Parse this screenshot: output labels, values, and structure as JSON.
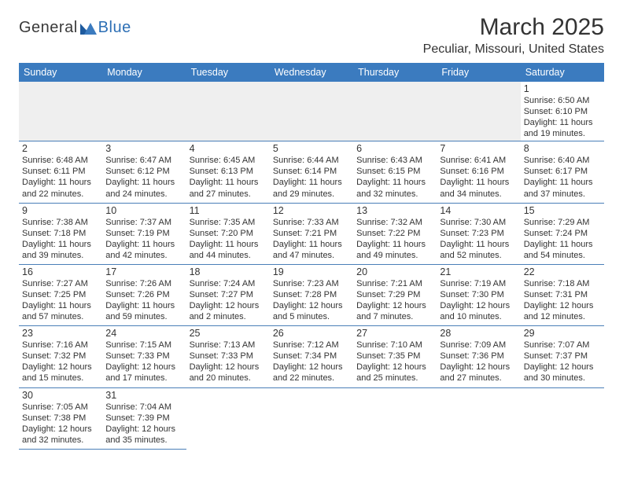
{
  "logo": {
    "text1": "General",
    "text2": "Blue"
  },
  "title": "March 2025",
  "location": "Peculiar, Missouri, United States",
  "colors": {
    "header_bg": "#3b7bbf",
    "header_fg": "#ffffff",
    "cell_border": "#4a7fb8",
    "filler_bg": "#efefef",
    "text": "#333333",
    "logo_blue": "#2d6fb5"
  },
  "weekdays": [
    "Sunday",
    "Monday",
    "Tuesday",
    "Wednesday",
    "Thursday",
    "Friday",
    "Saturday"
  ],
  "weeks": [
    [
      null,
      null,
      null,
      null,
      null,
      null,
      {
        "n": "1",
        "sunrise": "Sunrise: 6:50 AM",
        "sunset": "Sunset: 6:10 PM",
        "d1": "Daylight: 11 hours",
        "d2": "and 19 minutes."
      }
    ],
    [
      {
        "n": "2",
        "sunrise": "Sunrise: 6:48 AM",
        "sunset": "Sunset: 6:11 PM",
        "d1": "Daylight: 11 hours",
        "d2": "and 22 minutes."
      },
      {
        "n": "3",
        "sunrise": "Sunrise: 6:47 AM",
        "sunset": "Sunset: 6:12 PM",
        "d1": "Daylight: 11 hours",
        "d2": "and 24 minutes."
      },
      {
        "n": "4",
        "sunrise": "Sunrise: 6:45 AM",
        "sunset": "Sunset: 6:13 PM",
        "d1": "Daylight: 11 hours",
        "d2": "and 27 minutes."
      },
      {
        "n": "5",
        "sunrise": "Sunrise: 6:44 AM",
        "sunset": "Sunset: 6:14 PM",
        "d1": "Daylight: 11 hours",
        "d2": "and 29 minutes."
      },
      {
        "n": "6",
        "sunrise": "Sunrise: 6:43 AM",
        "sunset": "Sunset: 6:15 PM",
        "d1": "Daylight: 11 hours",
        "d2": "and 32 minutes."
      },
      {
        "n": "7",
        "sunrise": "Sunrise: 6:41 AM",
        "sunset": "Sunset: 6:16 PM",
        "d1": "Daylight: 11 hours",
        "d2": "and 34 minutes."
      },
      {
        "n": "8",
        "sunrise": "Sunrise: 6:40 AM",
        "sunset": "Sunset: 6:17 PM",
        "d1": "Daylight: 11 hours",
        "d2": "and 37 minutes."
      }
    ],
    [
      {
        "n": "9",
        "sunrise": "Sunrise: 7:38 AM",
        "sunset": "Sunset: 7:18 PM",
        "d1": "Daylight: 11 hours",
        "d2": "and 39 minutes."
      },
      {
        "n": "10",
        "sunrise": "Sunrise: 7:37 AM",
        "sunset": "Sunset: 7:19 PM",
        "d1": "Daylight: 11 hours",
        "d2": "and 42 minutes."
      },
      {
        "n": "11",
        "sunrise": "Sunrise: 7:35 AM",
        "sunset": "Sunset: 7:20 PM",
        "d1": "Daylight: 11 hours",
        "d2": "and 44 minutes."
      },
      {
        "n": "12",
        "sunrise": "Sunrise: 7:33 AM",
        "sunset": "Sunset: 7:21 PM",
        "d1": "Daylight: 11 hours",
        "d2": "and 47 minutes."
      },
      {
        "n": "13",
        "sunrise": "Sunrise: 7:32 AM",
        "sunset": "Sunset: 7:22 PM",
        "d1": "Daylight: 11 hours",
        "d2": "and 49 minutes."
      },
      {
        "n": "14",
        "sunrise": "Sunrise: 7:30 AM",
        "sunset": "Sunset: 7:23 PM",
        "d1": "Daylight: 11 hours",
        "d2": "and 52 minutes."
      },
      {
        "n": "15",
        "sunrise": "Sunrise: 7:29 AM",
        "sunset": "Sunset: 7:24 PM",
        "d1": "Daylight: 11 hours",
        "d2": "and 54 minutes."
      }
    ],
    [
      {
        "n": "16",
        "sunrise": "Sunrise: 7:27 AM",
        "sunset": "Sunset: 7:25 PM",
        "d1": "Daylight: 11 hours",
        "d2": "and 57 minutes."
      },
      {
        "n": "17",
        "sunrise": "Sunrise: 7:26 AM",
        "sunset": "Sunset: 7:26 PM",
        "d1": "Daylight: 11 hours",
        "d2": "and 59 minutes."
      },
      {
        "n": "18",
        "sunrise": "Sunrise: 7:24 AM",
        "sunset": "Sunset: 7:27 PM",
        "d1": "Daylight: 12 hours",
        "d2": "and 2 minutes."
      },
      {
        "n": "19",
        "sunrise": "Sunrise: 7:23 AM",
        "sunset": "Sunset: 7:28 PM",
        "d1": "Daylight: 12 hours",
        "d2": "and 5 minutes."
      },
      {
        "n": "20",
        "sunrise": "Sunrise: 7:21 AM",
        "sunset": "Sunset: 7:29 PM",
        "d1": "Daylight: 12 hours",
        "d2": "and 7 minutes."
      },
      {
        "n": "21",
        "sunrise": "Sunrise: 7:19 AM",
        "sunset": "Sunset: 7:30 PM",
        "d1": "Daylight: 12 hours",
        "d2": "and 10 minutes."
      },
      {
        "n": "22",
        "sunrise": "Sunrise: 7:18 AM",
        "sunset": "Sunset: 7:31 PM",
        "d1": "Daylight: 12 hours",
        "d2": "and 12 minutes."
      }
    ],
    [
      {
        "n": "23",
        "sunrise": "Sunrise: 7:16 AM",
        "sunset": "Sunset: 7:32 PM",
        "d1": "Daylight: 12 hours",
        "d2": "and 15 minutes."
      },
      {
        "n": "24",
        "sunrise": "Sunrise: 7:15 AM",
        "sunset": "Sunset: 7:33 PM",
        "d1": "Daylight: 12 hours",
        "d2": "and 17 minutes."
      },
      {
        "n": "25",
        "sunrise": "Sunrise: 7:13 AM",
        "sunset": "Sunset: 7:33 PM",
        "d1": "Daylight: 12 hours",
        "d2": "and 20 minutes."
      },
      {
        "n": "26",
        "sunrise": "Sunrise: 7:12 AM",
        "sunset": "Sunset: 7:34 PM",
        "d1": "Daylight: 12 hours",
        "d2": "and 22 minutes."
      },
      {
        "n": "27",
        "sunrise": "Sunrise: 7:10 AM",
        "sunset": "Sunset: 7:35 PM",
        "d1": "Daylight: 12 hours",
        "d2": "and 25 minutes."
      },
      {
        "n": "28",
        "sunrise": "Sunrise: 7:09 AM",
        "sunset": "Sunset: 7:36 PM",
        "d1": "Daylight: 12 hours",
        "d2": "and 27 minutes."
      },
      {
        "n": "29",
        "sunrise": "Sunrise: 7:07 AM",
        "sunset": "Sunset: 7:37 PM",
        "d1": "Daylight: 12 hours",
        "d2": "and 30 minutes."
      }
    ],
    [
      {
        "n": "30",
        "sunrise": "Sunrise: 7:05 AM",
        "sunset": "Sunset: 7:38 PM",
        "d1": "Daylight: 12 hours",
        "d2": "and 32 minutes."
      },
      {
        "n": "31",
        "sunrise": "Sunrise: 7:04 AM",
        "sunset": "Sunset: 7:39 PM",
        "d1": "Daylight: 12 hours",
        "d2": "and 35 minutes."
      },
      null,
      null,
      null,
      null,
      null
    ]
  ]
}
